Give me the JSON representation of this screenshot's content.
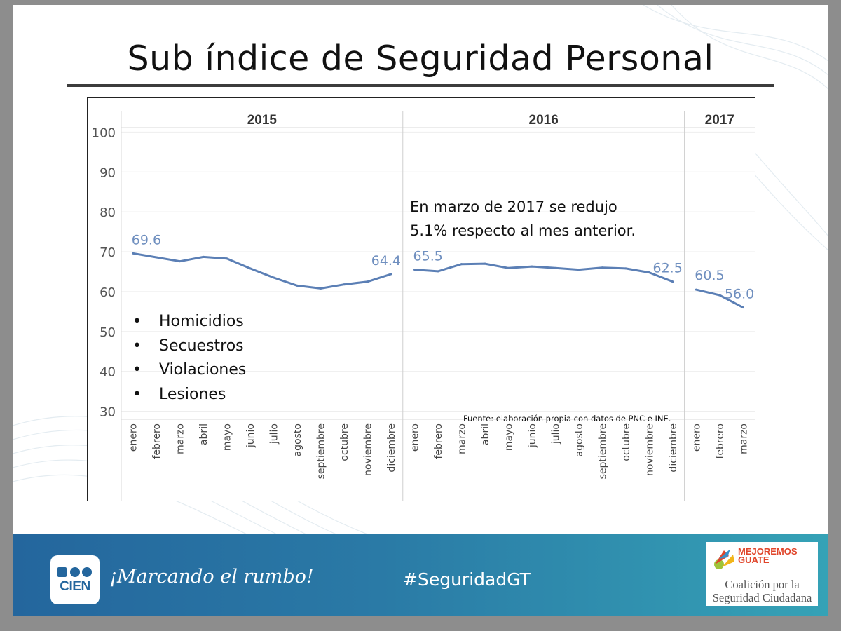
{
  "title": "Sub índice de Seguridad Personal",
  "chart_data": {
    "type": "line",
    "title": "Sub índice de Seguridad Personal",
    "ylim": [
      25,
      102
    ],
    "yticks": [
      30,
      40,
      50,
      60,
      70,
      80,
      90,
      100
    ],
    "panels": [
      {
        "year": "2015",
        "months": [
          "enero",
          "febrero",
          "marzo",
          "abril",
          "mayo",
          "junio",
          "julio",
          "agosto",
          "septiembre",
          "octubre",
          "noviembre",
          "diciembre"
        ],
        "values": [
          69.6,
          68.6,
          67.6,
          68.7,
          68.3,
          65.8,
          63.5,
          61.5,
          60.8,
          61.8,
          62.5,
          64.4
        ],
        "labeled": {
          "0": "69.6",
          "11": "64.4"
        }
      },
      {
        "year": "2016",
        "months": [
          "enero",
          "febrero",
          "marzo",
          "abril",
          "mayo",
          "junio",
          "julio",
          "agosto",
          "septiembre",
          "octubre",
          "noviembre",
          "diciembre"
        ],
        "values": [
          65.5,
          65.1,
          66.9,
          67.0,
          65.9,
          66.3,
          65.9,
          65.5,
          66.0,
          65.8,
          64.8,
          62.5
        ],
        "labeled": {
          "0": "65.5",
          "11": "62.5"
        }
      },
      {
        "year": "2017",
        "months": [
          "enero",
          "febrero",
          "marzo"
        ],
        "values": [
          60.5,
          59.1,
          56.0
        ],
        "labeled": {
          "0": "60.5",
          "2": "56.0"
        }
      }
    ],
    "line_color": "#5b7fb5"
  },
  "annotation": {
    "line1": "En marzo de 2017 se redujo",
    "line2": "5.1% respecto al mes anterior."
  },
  "bullets": [
    "Homicidios",
    "Secuestros",
    "Violaciones",
    "Lesiones"
  ],
  "source": "Fuente: elaboración propia con datos de PNC e INE.",
  "footer": {
    "logo_text": "CIEN",
    "slogan": "¡Marcando el rumbo!",
    "hashtag": "#SeguridadGT",
    "partner_brand_line1": "MEJOREMOS",
    "partner_brand_line2": "GUATE",
    "partner_name_line1": "Coalición por la",
    "partner_name_line2": "Seguridad Ciudadana"
  },
  "colors": {
    "footer_start": "#24669d",
    "footer_end": "#35a2b6",
    "data_label": "#6f8fbf"
  }
}
